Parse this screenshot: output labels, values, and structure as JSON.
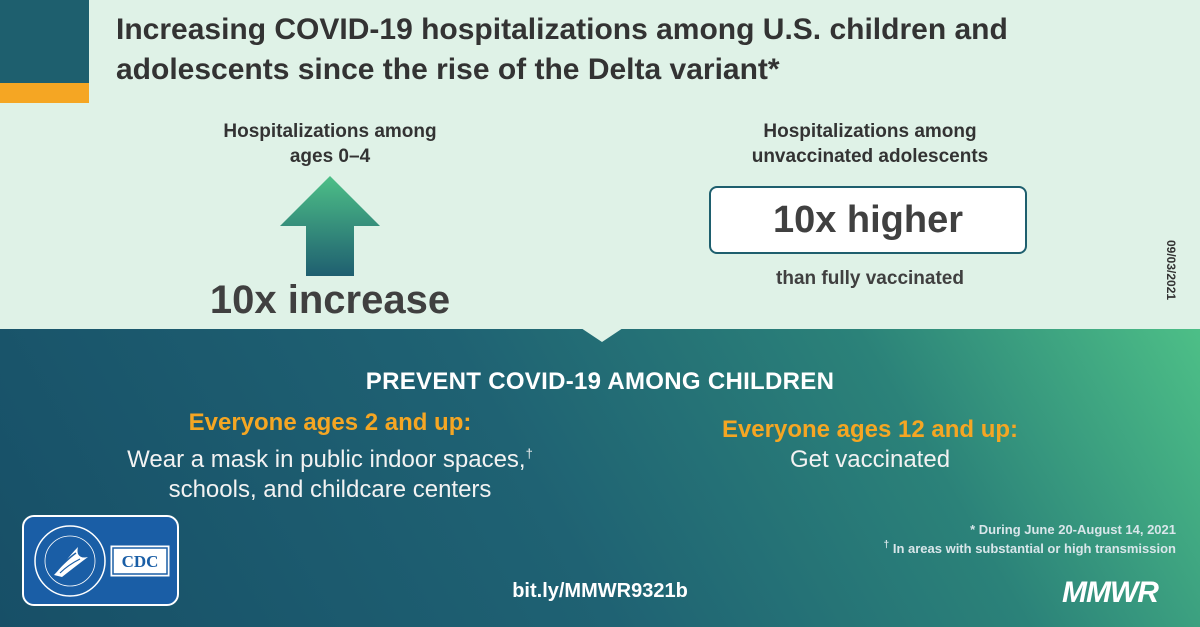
{
  "title_line1": "Increasing COVID-19 hospitalizations among U.S. children and",
  "title_line2": "adolescents since the rise of the Delta variant*",
  "left_stat": {
    "label_line1": "Hospitalizations among",
    "label_line2": "ages 0–4",
    "icon": "up-arrow-icon",
    "value": "10x increase"
  },
  "right_stat": {
    "label_line1": "Hospitalizations among",
    "label_line2": "unvaccinated adolescents",
    "value": "10x higher",
    "sub": "than fully vaccinated"
  },
  "date": "09/03/2021",
  "prevent": {
    "title": "PREVENT COVID-19 AMONG CHILDREN",
    "left_head": "Everyone ages 2 and up:",
    "left_line1": "Wear a mask in public indoor spaces,",
    "left_mark": "†",
    "left_line2": "schools, and childcare centers",
    "right_head": "Everyone ages 12 and up:",
    "right_line1": "Get vaccinated"
  },
  "footnotes": {
    "note1": "* During June 20-August 14, 2021",
    "note2_mark": "†",
    "note2": " In areas with substantial or high transmission"
  },
  "link": "bit.ly/MMWR9321b",
  "brand": "MMWR",
  "logos": {
    "hhs": "DEPARTMENT OF HEALTH & HUMAN SERVICES USA",
    "cdc": "CDC"
  },
  "colors": {
    "background_top": "#dff2e7",
    "accent_orange": "#f5a623",
    "dark_teal": "#1e5f6e",
    "logo_blue": "#1a5ea6"
  }
}
